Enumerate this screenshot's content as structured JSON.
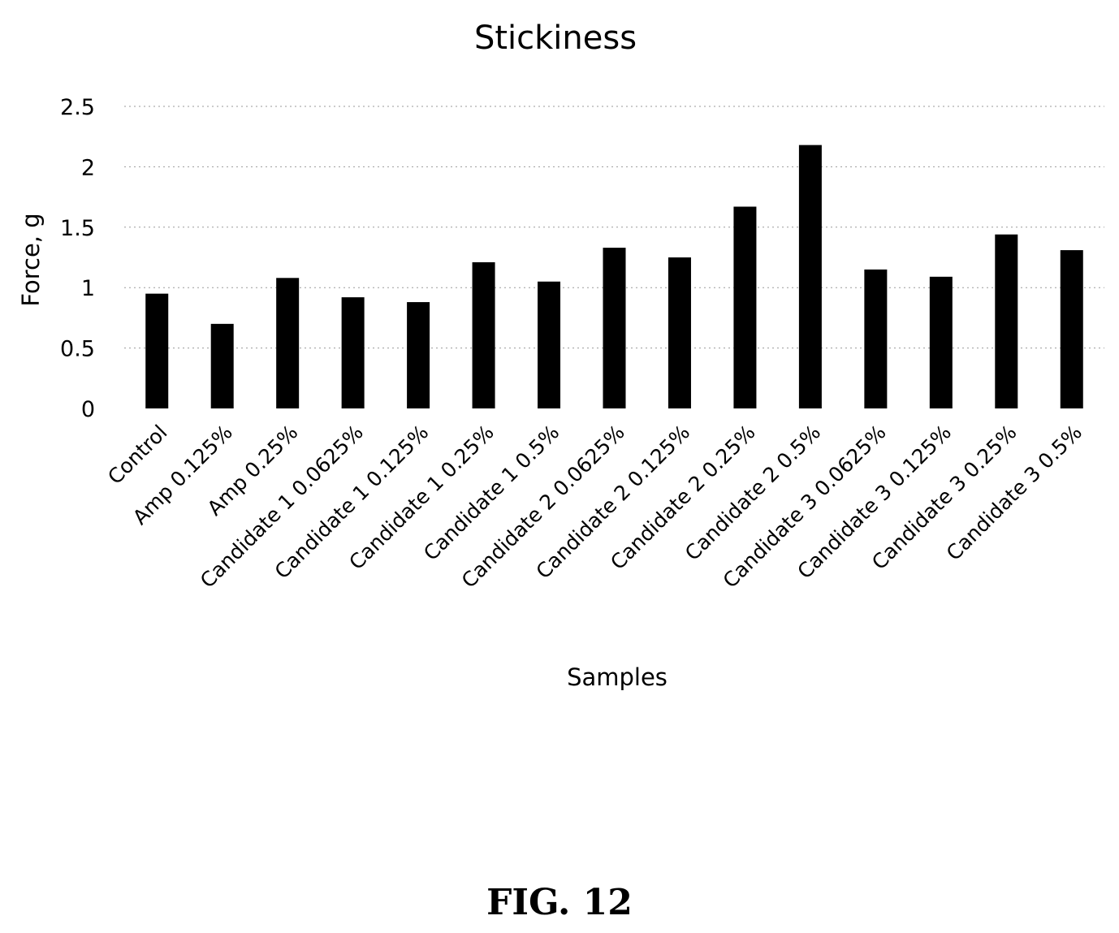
{
  "chart_data": {
    "type": "bar",
    "title": "Stickiness",
    "xlabel": "Samples",
    "ylabel": "Force, g",
    "ylim": [
      0,
      2.5
    ],
    "yticks": [
      "0",
      "0.5",
      "1",
      "1.5",
      "2",
      "2.5"
    ],
    "grid": true,
    "legend": "none",
    "bar_color": "#000000",
    "grid_color": "#9a9a9a",
    "categories": [
      "Control",
      "Amp 0.125%",
      "Amp 0.25%",
      "Candidate 1 0.0625%",
      "Candidate 1 0.125%",
      "Candidate 1 0.25%",
      "Candidate 1 0.5%",
      "Candidate 2 0.0625%",
      "Candidate 2 0.125%",
      "Candidate 2 0.25%",
      "Candidate 2 0.5%",
      "Candidate 3 0.0625%",
      "Candidate 3 0.125%",
      "Candidate 3 0.25%",
      "Candidate 3 0.5%"
    ],
    "values": [
      0.95,
      0.7,
      1.08,
      0.92,
      0.88,
      1.21,
      1.05,
      1.33,
      1.25,
      1.67,
      2.18,
      1.15,
      1.09,
      1.44,
      1.31
    ]
  },
  "caption": "FIG. 12"
}
